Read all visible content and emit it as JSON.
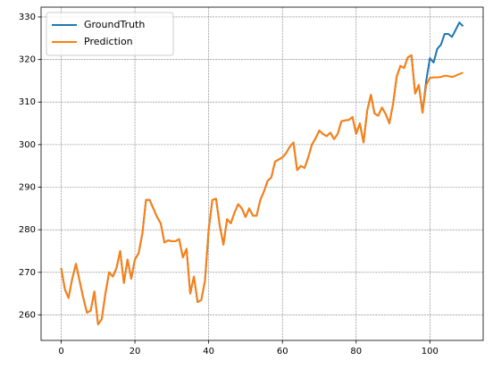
{
  "chart_data": {
    "type": "line",
    "x": [
      0,
      1,
      2,
      3,
      4,
      5,
      6,
      7,
      8,
      9,
      10,
      11,
      12,
      13,
      14,
      15,
      16,
      17,
      18,
      19,
      20,
      21,
      22,
      23,
      24,
      25,
      26,
      27,
      28,
      29,
      30,
      31,
      32,
      33,
      34,
      35,
      36,
      37,
      38,
      39,
      40,
      41,
      42,
      43,
      44,
      45,
      46,
      47,
      48,
      49,
      50,
      51,
      52,
      53,
      54,
      55,
      56,
      57,
      58,
      59,
      60,
      61,
      62,
      63,
      64,
      65,
      66,
      67,
      68,
      69,
      70,
      71,
      72,
      73,
      74,
      75,
      76,
      77,
      78,
      79,
      80,
      81,
      82,
      83,
      84,
      85,
      86,
      87,
      88,
      89,
      90,
      91,
      92,
      93,
      94,
      95,
      96,
      97,
      98,
      99,
      100,
      101,
      102,
      103,
      104,
      105,
      106,
      107,
      108,
      109
    ],
    "series": [
      {
        "name": "GroundTruth",
        "color": "#1f77b4",
        "values": [
          271,
          266,
          264,
          268.5,
          272,
          268,
          264,
          260.5,
          261,
          265.5,
          257.8,
          259,
          265,
          270,
          269,
          271,
          275,
          267.5,
          273,
          268.5,
          273,
          274.5,
          279,
          287,
          287,
          285,
          283,
          281.5,
          277,
          277.5,
          277.3,
          277.3,
          277.8,
          273.5,
          275.5,
          265,
          269,
          263,
          263.5,
          268,
          280,
          287,
          287.3,
          281,
          276.5,
          282.5,
          281.5,
          284,
          286,
          285,
          283,
          285,
          283.3,
          283.3,
          287,
          289,
          291.5,
          292.3,
          296,
          296.5,
          297,
          298,
          299.5,
          300.5,
          294,
          295,
          294.5,
          297,
          300,
          301.5,
          303.3,
          302.5,
          302,
          302.8,
          301.3,
          302.5,
          305.5,
          305.7,
          305.8,
          306.5,
          302.5,
          305,
          300.5,
          308,
          311.7,
          307.3,
          306.8,
          308.7,
          307.2,
          305,
          309.5,
          316,
          318.5,
          318,
          320.5,
          321,
          312,
          314,
          307.5,
          315,
          320.3,
          319.3,
          322.5,
          323.5,
          326,
          326,
          325.3,
          327,
          328.7,
          327.8
        ]
      },
      {
        "name": "Prediction",
        "color": "#ff7f0e",
        "values": [
          271,
          266,
          264,
          268.5,
          272,
          268,
          264,
          260.5,
          261,
          265.5,
          257.8,
          259,
          265,
          270,
          269,
          271,
          275,
          267.5,
          273,
          268.5,
          273,
          274.5,
          279,
          287,
          287,
          285,
          283,
          281.5,
          277,
          277.5,
          277.3,
          277.3,
          277.8,
          273.5,
          275.5,
          265,
          269,
          263,
          263.5,
          268,
          280,
          287,
          287.3,
          281,
          276.5,
          282.5,
          281.5,
          284,
          286,
          285,
          283,
          285,
          283.3,
          283.3,
          287,
          289,
          291.5,
          292.3,
          296,
          296.5,
          297,
          298,
          299.5,
          300.5,
          294,
          295,
          294.5,
          297,
          300,
          301.5,
          303.3,
          302.5,
          302,
          302.8,
          301.3,
          302.5,
          305.5,
          305.7,
          305.8,
          306.5,
          302.5,
          305,
          300.5,
          308,
          311.7,
          307.3,
          306.8,
          308.7,
          307.2,
          305,
          309.5,
          316,
          318.5,
          318,
          320.5,
          321,
          312,
          314,
          307.5,
          314,
          315.7,
          315.8,
          315.8,
          315.9,
          316.2,
          316.1,
          315.9,
          316.2,
          316.6,
          316.9
        ]
      }
    ],
    "xlim": [
      -5.45,
      114.45
    ],
    "ylim": [
      254,
      332.3
    ],
    "xticks": [
      0,
      20,
      40,
      60,
      80,
      100
    ],
    "yticks": [
      260,
      270,
      280,
      290,
      300,
      310,
      320,
      330
    ],
    "grid": true,
    "legend": "upper left"
  }
}
